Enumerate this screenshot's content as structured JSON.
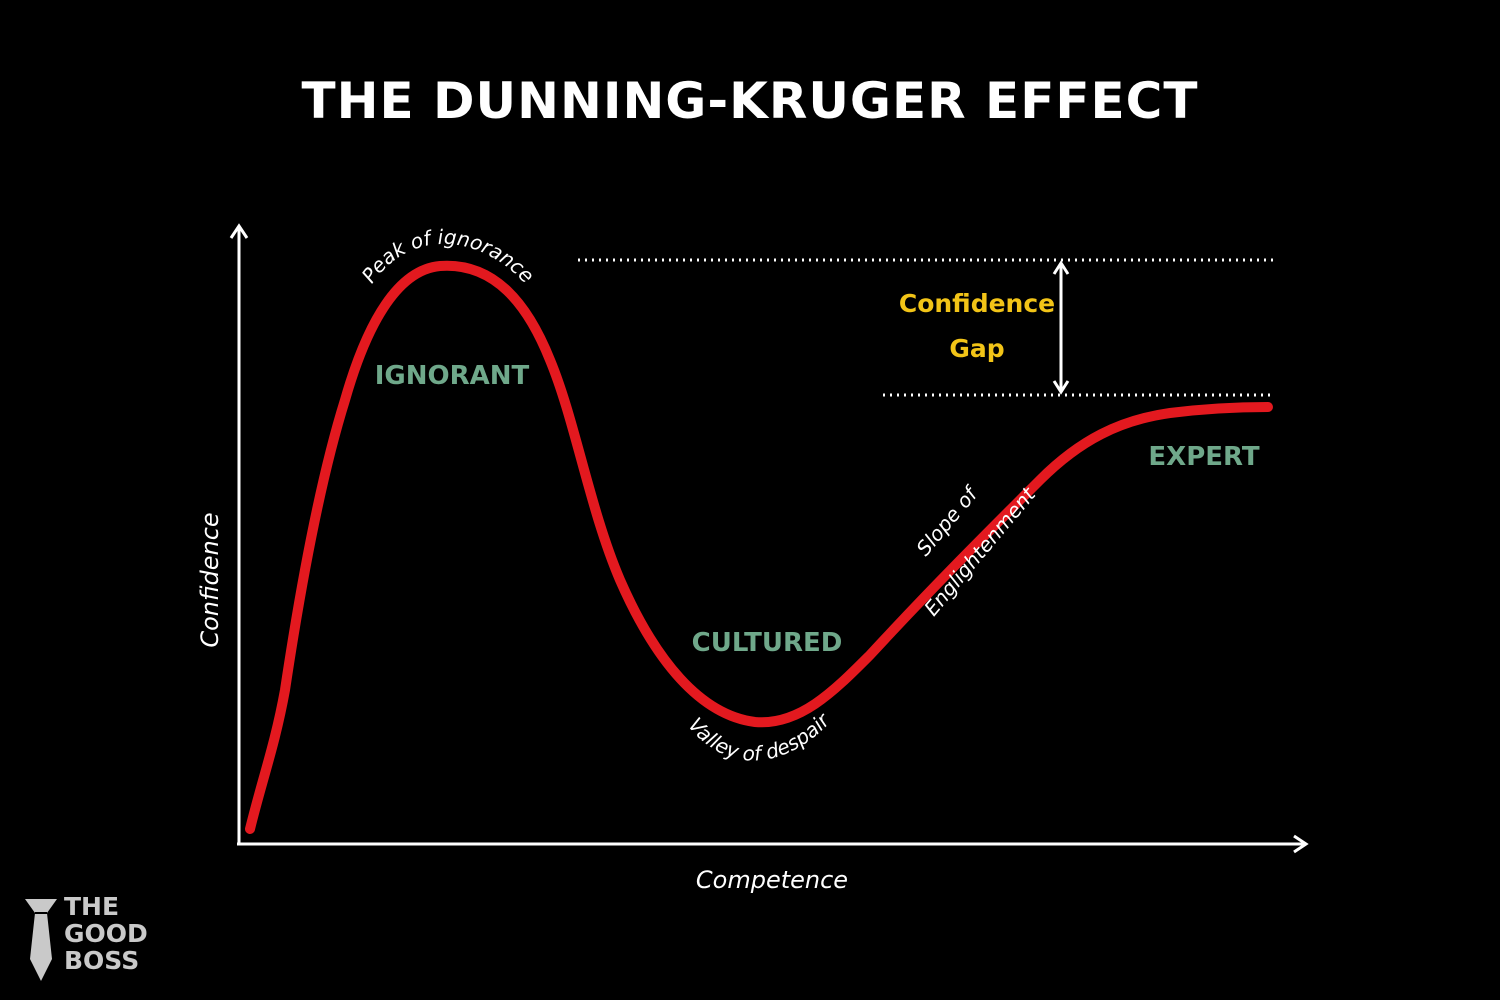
{
  "title": "THE DUNNING-KRUGER EFFECT",
  "axes": {
    "y_label": "Confidence",
    "x_label": "Competence"
  },
  "curve_labels": {
    "peak": "Peak of ignorance",
    "valley": "Valley of despair",
    "slope_line1": "Slope of",
    "slope_line2": "Englightenment"
  },
  "stages": {
    "ignorant": "IGNORANT",
    "cultured": "CULTURED",
    "expert": "EXPERT"
  },
  "gap": {
    "line1": "Confidence",
    "line2": "Gap"
  },
  "logo": {
    "line1": "THE",
    "line2": "GOOD",
    "line3": "BOSS"
  },
  "colors": {
    "background": "#000000",
    "curve": "#e3191f",
    "stage_label": "#6fa88a",
    "gap_label": "#f2c417",
    "text": "#ffffff",
    "logo": "#c9c9c9"
  }
}
